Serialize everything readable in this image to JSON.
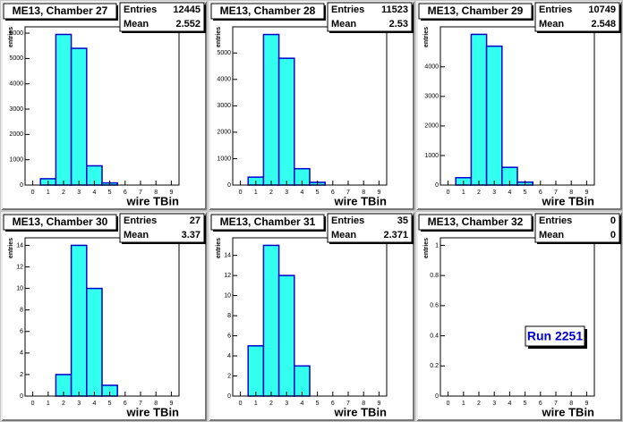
{
  "chart_data": [
    {
      "type": "histogram",
      "title": "ME13, Chamber 27",
      "entries_label": "Entries",
      "entries": 12445,
      "mean_label": "Mean",
      "mean": 2.552,
      "xlabel": "wire TBin",
      "ylabel": "entries",
      "bins": [
        -0.5,
        0.5,
        1.5,
        2.5,
        3.5,
        4.5,
        5.5,
        6.5,
        7.5,
        8.5,
        9.5
      ],
      "counts": [
        0,
        250,
        5950,
        5400,
        760,
        85,
        0,
        0,
        0,
        0
      ],
      "xlim": [
        -0.5,
        9.5
      ],
      "xticks": [
        0,
        1,
        2,
        3,
        4,
        5,
        6,
        7,
        8,
        9
      ],
      "ylim": [
        0,
        6250
      ],
      "yticks": [
        0,
        1000,
        2000,
        3000,
        4000,
        5000,
        6000
      ],
      "color": "#33ffee",
      "edge_color": "#0000cc"
    },
    {
      "type": "histogram",
      "title": "ME13, Chamber 28",
      "entries_label": "Entries",
      "entries": 11523,
      "mean_label": "Mean",
      "mean": 2.53,
      "xlabel": "wire TBin",
      "ylabel": "entries",
      "bins": [
        -0.5,
        0.5,
        1.5,
        2.5,
        3.5,
        4.5,
        5.5,
        6.5,
        7.5,
        8.5,
        9.5
      ],
      "counts": [
        0,
        300,
        5700,
        4800,
        620,
        103,
        0,
        0,
        0,
        0
      ],
      "xlim": [
        -0.5,
        9.5
      ],
      "xticks": [
        0,
        1,
        2,
        3,
        4,
        5,
        6,
        7,
        8,
        9
      ],
      "ylim": [
        0,
        5990
      ],
      "yticks": [
        0,
        1000,
        2000,
        3000,
        4000,
        5000
      ],
      "color": "#33ffee",
      "edge_color": "#0000cc"
    },
    {
      "type": "histogram",
      "title": "ME13, Chamber 29",
      "entries_label": "Entries",
      "entries": 10749,
      "mean_label": "Mean",
      "mean": 2.548,
      "xlabel": "wire TBin",
      "ylabel": "entries",
      "bins": [
        -0.5,
        0.5,
        1.5,
        2.5,
        3.5,
        4.5,
        5.5,
        6.5,
        7.5,
        8.5,
        9.5
      ],
      "counts": [
        0,
        250,
        5100,
        4700,
        600,
        99,
        0,
        0,
        0,
        0
      ],
      "xlim": [
        -0.5,
        9.5
      ],
      "xticks": [
        0,
        1,
        2,
        3,
        4,
        5,
        6,
        7,
        8,
        9
      ],
      "ylim": [
        0,
        5355
      ],
      "yticks": [
        0,
        1000,
        2000,
        3000,
        4000
      ],
      "color": "#33ffee",
      "edge_color": "#0000cc"
    },
    {
      "type": "histogram",
      "title": "ME13, Chamber 30",
      "entries_label": "Entries",
      "entries": 27,
      "mean_label": "Mean",
      "mean": 3.37,
      "xlabel": "wire TBin",
      "ylabel": "entries",
      "bins": [
        -0.5,
        0.5,
        1.5,
        2.5,
        3.5,
        4.5,
        5.5,
        6.5,
        7.5,
        8.5,
        9.5
      ],
      "counts": [
        0,
        0,
        2,
        14,
        10,
        1,
        0,
        0,
        0,
        0
      ],
      "xlim": [
        -0.5,
        9.5
      ],
      "xticks": [
        0,
        1,
        2,
        3,
        4,
        5,
        6,
        7,
        8,
        9
      ],
      "ylim": [
        0,
        14.7
      ],
      "yticks": [
        0,
        2,
        4,
        6,
        8,
        10,
        12,
        14
      ],
      "color": "#33ffee",
      "edge_color": "#0000cc"
    },
    {
      "type": "histogram",
      "title": "ME13, Chamber 31",
      "entries_label": "Entries",
      "entries": 35,
      "mean_label": "Mean",
      "mean": 2.371,
      "xlabel": "wire TBin",
      "ylabel": "entries",
      "bins": [
        -0.5,
        0.5,
        1.5,
        2.5,
        3.5,
        4.5,
        5.5,
        6.5,
        7.5,
        8.5,
        9.5
      ],
      "counts": [
        0,
        5,
        15,
        12,
        3,
        0,
        0,
        0,
        0,
        0
      ],
      "xlim": [
        -0.5,
        9.5
      ],
      "xticks": [
        0,
        1,
        2,
        3,
        4,
        5,
        6,
        7,
        8,
        9
      ],
      "ylim": [
        0,
        15.75
      ],
      "yticks": [
        0,
        2,
        4,
        6,
        8,
        10,
        12,
        14
      ],
      "color": "#33ffee",
      "edge_color": "#0000cc"
    },
    {
      "type": "histogram",
      "title": "ME13, Chamber 32",
      "entries_label": "Entries",
      "entries": 0,
      "mean_label": "Mean",
      "mean": 0,
      "xlabel": "wire TBin",
      "ylabel": "entries",
      "bins": [
        -0.5,
        0.5,
        1.5,
        2.5,
        3.5,
        4.5,
        5.5,
        6.5,
        7.5,
        8.5,
        9.5
      ],
      "counts": [
        0,
        0,
        0,
        0,
        0,
        0,
        0,
        0,
        0,
        0
      ],
      "xlim": [
        -0.5,
        9.5
      ],
      "xticks": [
        0,
        1,
        2,
        3,
        4,
        5,
        6,
        7,
        8,
        9
      ],
      "ylim": [
        0,
        1.05
      ],
      "yticks": [
        0,
        0.2,
        0.4,
        0.6,
        0.8,
        1
      ],
      "color": "#33ffee",
      "edge_color": "#0000cc",
      "annotation": "Run 2251"
    }
  ]
}
